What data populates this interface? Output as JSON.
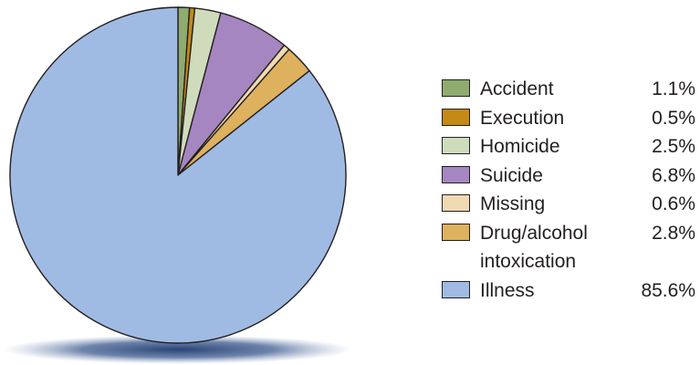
{
  "chart_data": {
    "type": "pie",
    "title": "",
    "start_angle_deg": 0,
    "direction": "clockwise",
    "legend_position": "right",
    "series": [
      {
        "name": "Accident",
        "value": 1.1,
        "label": "1.1%",
        "color": "#8fab70"
      },
      {
        "name": "Execution",
        "value": 0.5,
        "label": "0.5%",
        "color": "#c48a15"
      },
      {
        "name": "Homicide",
        "value": 2.5,
        "label": "2.5%",
        "color": "#cfdcbc"
      },
      {
        "name": "Suicide",
        "value": 6.8,
        "label": "6.8%",
        "color": "#a586c0"
      },
      {
        "name": "Missing",
        "value": 0.6,
        "label": "0.6%",
        "color": "#f0dab2"
      },
      {
        "name": "Drug/alcohol intoxication",
        "value": 2.8,
        "label": "2.8%",
        "color": "#ddb15e"
      },
      {
        "name": "Illness",
        "value": 85.6,
        "label": "85.6%",
        "color": "#a0bbe3"
      }
    ]
  }
}
